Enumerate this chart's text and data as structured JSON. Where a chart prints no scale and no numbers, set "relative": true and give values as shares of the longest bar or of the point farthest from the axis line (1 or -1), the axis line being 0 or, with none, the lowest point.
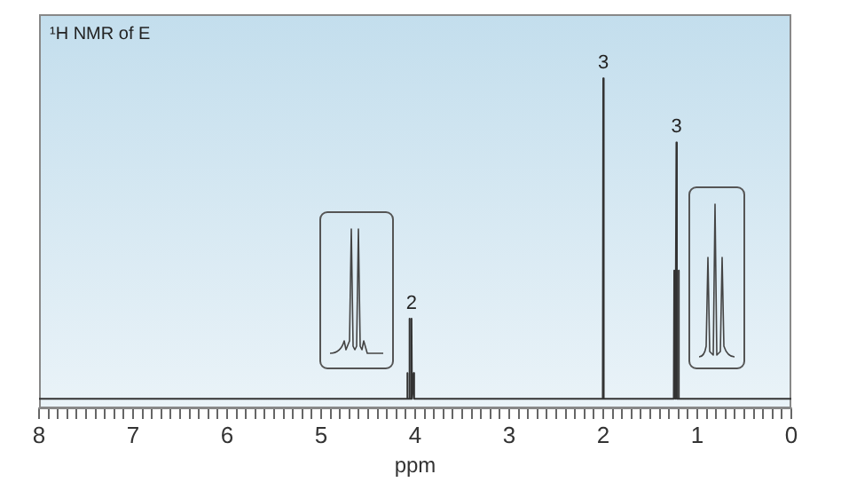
{
  "chart_data": {
    "type": "line",
    "title": "¹H NMR of E",
    "xlabel": "ppm",
    "relative": true,
    "grid": false,
    "legend": false,
    "marker": "none",
    "line_style": "solid",
    "xlim": [
      8,
      0
    ],
    "xticks": [
      8,
      {
        "value": 7.9,
        "label": null
      },
      {
        "value": 7.8,
        "label": null
      },
      {
        "value": 7.7,
        "label": null
      },
      {
        "value": 7.6,
        "label": null
      },
      {
        "value": 7.5,
        "label": null
      },
      {
        "value": 7.4,
        "label": null
      },
      {
        "value": 7.3,
        "label": null
      },
      {
        "value": 7.2,
        "label": null
      },
      {
        "value": 7.1,
        "label": null
      },
      7,
      {
        "value": 6.9,
        "label": null
      },
      {
        "value": 6.8,
        "label": null
      },
      {
        "value": 6.7,
        "label": null
      },
      {
        "value": 6.6,
        "label": null
      },
      {
        "value": 6.5,
        "label": null
      },
      {
        "value": 6.4,
        "label": null
      },
      {
        "value": 6.3,
        "label": null
      },
      {
        "value": 6.2,
        "label": null
      },
      {
        "value": 6.1,
        "label": null
      },
      6,
      {
        "value": 5.9,
        "label": null
      },
      {
        "value": 5.8,
        "label": null
      },
      {
        "value": 5.7,
        "label": null
      },
      {
        "value": 5.6,
        "label": null
      },
      {
        "value": 5.5,
        "label": null
      },
      {
        "value": 5.4,
        "label": null
      },
      {
        "value": 5.3,
        "label": null
      },
      {
        "value": 5.2,
        "label": null
      },
      {
        "value": 5.1,
        "label": null
      },
      5,
      {
        "value": 4.9,
        "label": null
      },
      {
        "value": 4.8,
        "label": null
      },
      {
        "value": 4.7,
        "label": null
      },
      {
        "value": 4.6,
        "label": null
      },
      {
        "value": 4.5,
        "label": null
      },
      {
        "value": 4.4,
        "label": null
      },
      {
        "value": 4.3,
        "label": null
      },
      {
        "value": 4.2,
        "label": null
      },
      {
        "value": 4.1,
        "label": null
      },
      4,
      {
        "value": 3.9,
        "label": null
      },
      {
        "value": 3.8,
        "label": null
      },
      {
        "value": 3.7,
        "label": null
      },
      {
        "value": 3.6,
        "label": null
      },
      {
        "value": 3.5,
        "label": null
      },
      {
        "value": 3.4,
        "label": null
      },
      {
        "value": 3.3,
        "label": null
      },
      {
        "value": 3.2,
        "label": null
      },
      {
        "value": 3.1,
        "label": null
      },
      3,
      {
        "value": 2.9,
        "label": null
      },
      {
        "value": 2.8,
        "label": null
      },
      {
        "value": 2.7,
        "label": null
      },
      {
        "value": 2.6,
        "label": null
      },
      {
        "value": 2.5,
        "label": null
      },
      {
        "value": 2.4,
        "label": null
      },
      {
        "value": 2.3,
        "label": null
      },
      {
        "value": 2.2,
        "label": null
      },
      {
        "value": 2.1,
        "label": null
      },
      2,
      {
        "value": 1.9,
        "label": null
      },
      {
        "value": 1.8,
        "label": null
      },
      {
        "value": 1.7,
        "label": null
      },
      {
        "value": 1.6,
        "label": null
      },
      {
        "value": 1.5,
        "label": null
      },
      {
        "value": 1.4,
        "label": null
      },
      {
        "value": 1.3,
        "label": null
      },
      {
        "value": 1.2,
        "label": null
      },
      {
        "value": 1.1,
        "label": null
      },
      1,
      {
        "value": 0.9,
        "label": null
      },
      {
        "value": 0.8,
        "label": null
      },
      {
        "value": 0.7,
        "label": null
      },
      {
        "value": 0.6,
        "label": null
      },
      {
        "value": 0.5,
        "label": null
      },
      {
        "value": 0.4,
        "label": null
      },
      {
        "value": 0.3,
        "label": null
      },
      {
        "value": 0.2,
        "label": null
      },
      {
        "value": 0.1,
        "label": null
      },
      0
    ],
    "series": [
      {
        "color": "#333333",
        "x": [
          8,
          4.09,
          4.085,
          4.08,
          4.067,
          4.062,
          4.057,
          4.044,
          4.039,
          4.034,
          4.021,
          4.016,
          4.011,
          2.005,
          2.0,
          1.995,
          1.25,
          1.245,
          1.24,
          1.227,
          1.222,
          1.217,
          1.204,
          1.199,
          1.194,
          0
        ],
        "values": [
          0,
          0,
          0.08,
          0,
          0,
          0.25,
          0,
          0,
          0.25,
          0,
          0,
          0.08,
          0,
          0,
          1,
          0,
          0,
          0.4,
          0,
          0,
          0.8,
          0,
          0,
          0.4,
          0,
          0
        ]
      }
    ],
    "annotations": [
      {
        "text": "2",
        "x": 4.04,
        "y": 0.25
      },
      {
        "text": "3",
        "x": 2.0,
        "y": 1
      },
      {
        "text": "3",
        "x": 1.22,
        "y": 0.8
      }
    ]
  }
}
